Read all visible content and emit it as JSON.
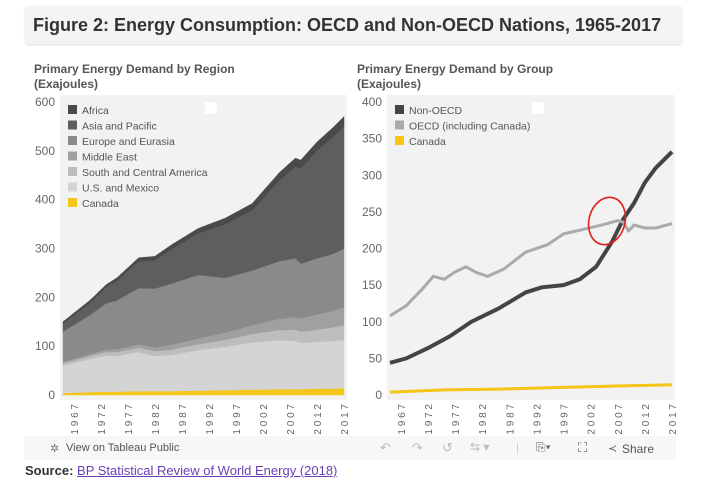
{
  "title": "Figure 2: Energy Consumption: OECD and Non-OECD Nations, 1965-2017",
  "source_label": "Source:",
  "source_link": "BP Statistical Review of World Energy (2018)",
  "toolbar": {
    "view_label": "View on Tableau Public",
    "share_label": "Share",
    "icons": [
      "tableau-logo-icon",
      "undo-icon",
      "redo-icon",
      "revert-icon",
      "refresh-icon",
      "download-icon",
      "fullscreen-icon",
      "share-icon"
    ]
  },
  "annotation": {
    "type": "hand-drawn circle",
    "color": "#e02020"
  },
  "chart_data": [
    {
      "type": "area",
      "stacked": true,
      "title": "Primary Energy Demand by Region",
      "subtitle": "(Exajoules)",
      "ylim": [
        0,
        600
      ],
      "yticks": [
        0,
        100,
        200,
        300,
        400,
        500,
        600
      ],
      "xticks": [
        1967,
        1972,
        1977,
        1982,
        1987,
        1992,
        1997,
        2002,
        2007,
        2012,
        2017
      ],
      "x": [
        1965,
        1970,
        1973,
        1975,
        1979,
        1982,
        1985,
        1990,
        1995,
        2000,
        2005,
        2008,
        2009,
        2012,
        2015,
        2017
      ],
      "legend_position": "top-left",
      "series": [
        {
          "name": "Canada",
          "color": "#f5c518",
          "values": [
            4,
            6,
            7,
            7,
            8,
            8,
            8,
            9,
            10,
            11,
            12,
            12,
            12,
            13,
            13,
            14
          ]
        },
        {
          "name": "U.S. and Mexico",
          "color": "#d4d4d4",
          "values": [
            56,
            68,
            74,
            73,
            80,
            72,
            74,
            83,
            89,
            97,
            100,
            99,
            95,
            96,
            98,
            99
          ]
        },
        {
          "name": "South and Central America",
          "color": "#bdbdbd",
          "values": [
            5,
            6,
            7,
            8,
            9,
            10,
            11,
            12,
            14,
            17,
            21,
            23,
            23,
            25,
            28,
            30
          ]
        },
        {
          "name": "Middle East",
          "color": "#a0a0a0",
          "values": [
            3,
            4,
            5,
            6,
            7,
            8,
            10,
            12,
            15,
            18,
            23,
            26,
            27,
            31,
            34,
            37
          ]
        },
        {
          "name": "Europe and Eurasia",
          "color": "#8a8a8a",
          "values": [
            62,
            80,
            95,
            100,
            115,
            120,
            125,
            130,
            112,
            112,
            118,
            120,
            112,
            115,
            116,
            120
          ]
        },
        {
          "name": "Asia and Pacific",
          "color": "#5e5e5e",
          "values": [
            16,
            25,
            33,
            40,
            55,
            58,
            70,
            85,
            110,
            123,
            165,
            188,
            195,
            220,
            240,
            250
          ]
        },
        {
          "name": "Africa",
          "color": "#4a4a4a",
          "values": [
            4,
            5,
            5,
            6,
            7,
            8,
            9,
            10,
            12,
            14,
            16,
            17,
            17,
            18,
            19,
            20
          ]
        }
      ]
    },
    {
      "type": "line",
      "title": "Primary Energy Demand by Group",
      "subtitle": "(Exajoules)",
      "ylim": [
        0,
        400
      ],
      "yticks": [
        0,
        50,
        100,
        150,
        200,
        250,
        300,
        350,
        400
      ],
      "xticks": [
        1967,
        1972,
        1977,
        1982,
        1987,
        1992,
        1997,
        2002,
        2007,
        2012,
        2017
      ],
      "legend_position": "top-left",
      "series": [
        {
          "name": "Non-OECD",
          "color": "#444444",
          "x": [
            1965,
            1968,
            1972,
            1976,
            1980,
            1985,
            1990,
            1993,
            1997,
            2000,
            2003,
            2006,
            2008,
            2010,
            2012,
            2014,
            2017
          ],
          "values": [
            44,
            50,
            64,
            80,
            100,
            118,
            140,
            147,
            150,
            158,
            175,
            210,
            240,
            262,
            290,
            310,
            332
          ]
        },
        {
          "name": "OECD (including Canada)",
          "color": "#aaaaaa",
          "x": [
            1965,
            1968,
            1971,
            1973,
            1975,
            1977,
            1979,
            1981,
            1983,
            1986,
            1990,
            1994,
            1997,
            2000,
            2004,
            2007,
            2008,
            2009,
            2010,
            2012,
            2014,
            2017
          ],
          "values": [
            108,
            122,
            145,
            162,
            158,
            168,
            175,
            167,
            162,
            172,
            195,
            205,
            220,
            225,
            232,
            238,
            236,
            224,
            232,
            228,
            228,
            234
          ]
        },
        {
          "name": "Canada",
          "color": "#f5c518",
          "x": [
            1965,
            1975,
            1985,
            1995,
            2005,
            2017
          ],
          "values": [
            4,
            7,
            8,
            10,
            12,
            14
          ]
        }
      ]
    }
  ]
}
